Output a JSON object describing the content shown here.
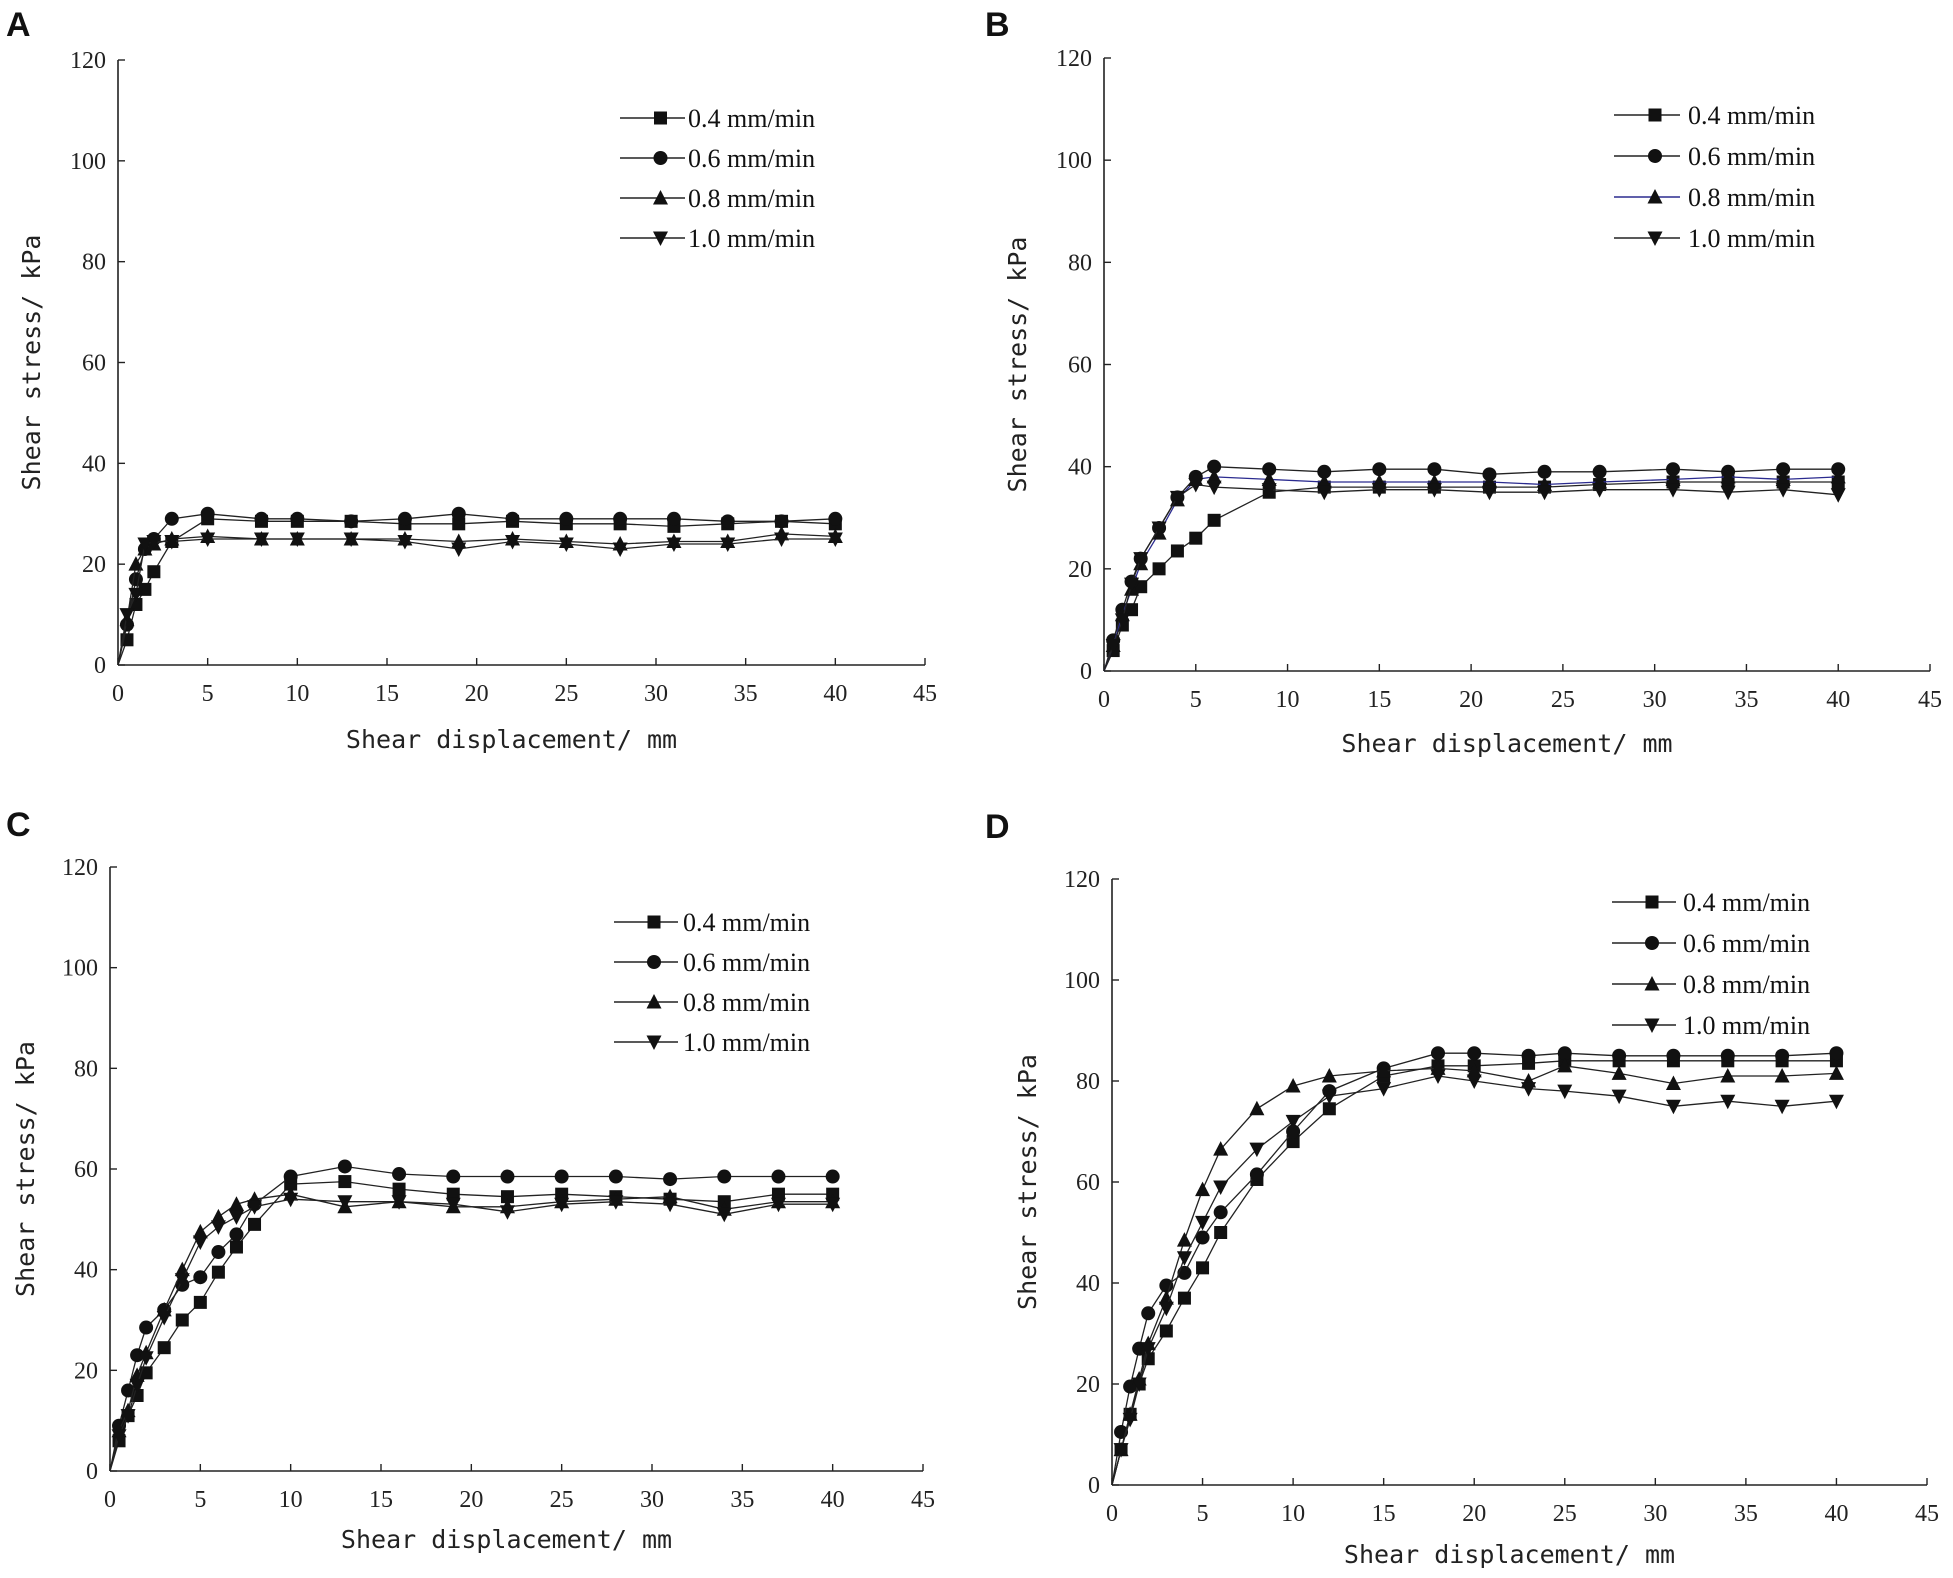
{
  "chart_data": [
    {
      "panel": "A",
      "type": "line",
      "xlabel": "Shear displacement/ mm",
      "ylabel": "Shear stress/ kPa",
      "xlim": [
        0,
        45
      ],
      "ylim": [
        0,
        120
      ],
      "xticks": [
        0,
        5,
        10,
        15,
        20,
        25,
        30,
        35,
        40,
        45
      ],
      "yticks": [
        0,
        20,
        40,
        60,
        80,
        100,
        120
      ],
      "legend_position": "top-right",
      "series": [
        {
          "name": "0.4 mm/min",
          "marker": "square",
          "color": "#222222",
          "x": [
            0,
            0.5,
            1,
            1.5,
            2,
            3,
            5,
            8,
            10,
            13,
            16,
            19,
            22,
            25,
            28,
            31,
            34,
            37,
            40
          ],
          "y": [
            0,
            5,
            12,
            15,
            18.5,
            24.5,
            29,
            28.5,
            28.5,
            28.5,
            28,
            28,
            28.5,
            28,
            28,
            27.5,
            28,
            28.5,
            28
          ]
        },
        {
          "name": "0.6 mm/min",
          "marker": "circle",
          "color": "#222222",
          "x": [
            0,
            0.5,
            1,
            1.5,
            2,
            3,
            5,
            8,
            10,
            13,
            16,
            19,
            22,
            25,
            28,
            31,
            34,
            37,
            40
          ],
          "y": [
            0,
            8,
            17,
            23,
            25,
            29,
            30,
            29,
            29,
            28.5,
            29,
            30,
            29,
            29,
            29,
            29,
            28.5,
            28.5,
            29
          ]
        },
        {
          "name": "0.8 mm/min",
          "marker": "triangle-up",
          "color": "#222222",
          "x": [
            0,
            0.5,
            1,
            1.5,
            2,
            3,
            5,
            8,
            10,
            13,
            16,
            19,
            22,
            25,
            28,
            31,
            34,
            37,
            40
          ],
          "y": [
            0,
            9,
            20,
            23,
            24,
            25,
            25.5,
            25,
            25,
            25,
            25,
            24.5,
            25,
            24.5,
            24,
            24.5,
            24.5,
            26,
            25.5
          ]
        },
        {
          "name": "1.0 mm/min",
          "marker": "triangle-down",
          "color": "#222222",
          "x": [
            0,
            0.5,
            1,
            1.5,
            2,
            3,
            5,
            8,
            10,
            13,
            16,
            19,
            22,
            25,
            28,
            31,
            34,
            37,
            40
          ],
          "y": [
            0,
            10,
            14,
            24,
            24.5,
            24.5,
            25,
            25,
            25,
            25,
            24.5,
            23,
            24.5,
            24,
            23,
            24,
            24,
            25,
            25
          ]
        }
      ]
    },
    {
      "panel": "B",
      "type": "line",
      "xlabel": "Shear displacement/ mm",
      "ylabel": "Shear stress/ kPa",
      "xlim": [
        0,
        45
      ],
      "ylim": [
        0,
        120
      ],
      "xticks": [
        0,
        5,
        10,
        15,
        20,
        25,
        30,
        35,
        40,
        45
      ],
      "yticks": [
        0,
        20,
        40,
        60,
        80,
        100,
        120
      ],
      "legend_position": "top-right",
      "series": [
        {
          "name": "0.4 mm/min",
          "marker": "square",
          "color": "#222222",
          "x": [
            0,
            0.5,
            1,
            1.5,
            2,
            3,
            4,
            5,
            6,
            9,
            12,
            15,
            18,
            21,
            24,
            27,
            31,
            34,
            37,
            40
          ],
          "y": [
            0,
            4,
            9,
            12,
            16.5,
            20,
            23.5,
            26,
            29.5,
            35,
            36,
            36,
            36,
            36,
            36,
            36.5,
            37,
            37,
            37,
            37
          ]
        },
        {
          "name": "0.6 mm/min",
          "marker": "circle",
          "color": "#222222",
          "x": [
            0,
            0.5,
            1,
            1.5,
            2,
            3,
            4,
            5,
            6,
            9,
            12,
            15,
            18,
            21,
            24,
            27,
            31,
            34,
            37,
            40
          ],
          "y": [
            0,
            6,
            12,
            17.5,
            22,
            28,
            34,
            38,
            40,
            39.5,
            39,
            39.5,
            39.5,
            38.5,
            39,
            39,
            39.5,
            39,
            39.5,
            39.5
          ]
        },
        {
          "name": "0.8 mm/min",
          "marker": "triangle-up",
          "color": "#2b2b8f",
          "x": [
            0,
            0.5,
            1,
            1.5,
            2,
            3,
            4,
            5,
            6,
            9,
            12,
            15,
            18,
            21,
            24,
            27,
            31,
            34,
            37,
            40
          ],
          "y": [
            0,
            5,
            11,
            16,
            21,
            27,
            33.5,
            37.5,
            38,
            37.5,
            37,
            37,
            37,
            37,
            36.5,
            37,
            37.5,
            38,
            37.5,
            38
          ]
        },
        {
          "name": "1.0 mm/min",
          "marker": "triangle-down",
          "color": "#222222",
          "x": [
            0,
            0.5,
            1,
            1.5,
            2,
            3,
            4,
            5,
            6,
            9,
            12,
            15,
            18,
            21,
            24,
            27,
            31,
            34,
            37,
            40
          ],
          "y": [
            0,
            5,
            10,
            17,
            22,
            28,
            34,
            36.5,
            36,
            35.5,
            35,
            35.5,
            35.5,
            35,
            35,
            35.5,
            35.5,
            35,
            35.5,
            34.5
          ]
        }
      ]
    },
    {
      "panel": "C",
      "type": "line",
      "xlabel": "Shear displacement/ mm",
      "ylabel": "Shear stress/ kPa",
      "xlim": [
        0,
        45
      ],
      "ylim": [
        0,
        120
      ],
      "xticks": [
        0,
        5,
        10,
        15,
        20,
        25,
        30,
        35,
        40,
        45
      ],
      "yticks": [
        0,
        20,
        40,
        60,
        80,
        100,
        120
      ],
      "legend_position": "top-right",
      "series": [
        {
          "name": "0.4 mm/min",
          "marker": "square",
          "color": "#222222",
          "x": [
            0,
            0.5,
            1,
            1.5,
            2,
            3,
            4,
            5,
            6,
            7,
            8,
            10,
            13,
            16,
            19,
            22,
            25,
            28,
            31,
            34,
            37,
            40
          ],
          "y": [
            0,
            6,
            11,
            15,
            19.5,
            24.5,
            30,
            33.5,
            39.5,
            44.5,
            49,
            57,
            57.5,
            56,
            55,
            54.5,
            55,
            54.5,
            54,
            53.5,
            55,
            55
          ]
        },
        {
          "name": "0.6 mm/min",
          "marker": "circle",
          "color": "#222222",
          "x": [
            0,
            0.5,
            1,
            1.5,
            2,
            3,
            4,
            5,
            6,
            7,
            8,
            10,
            13,
            16,
            19,
            22,
            25,
            28,
            31,
            34,
            37,
            40
          ],
          "y": [
            0,
            9,
            16,
            23,
            28.5,
            32,
            37,
            38.5,
            43.5,
            47,
            53,
            58.5,
            60.5,
            59,
            58.5,
            58.5,
            58.5,
            58.5,
            58,
            58.5,
            58.5,
            58.5
          ]
        },
        {
          "name": "0.8 mm/min",
          "marker": "triangle-up",
          "color": "#222222",
          "x": [
            0,
            0.5,
            1,
            1.5,
            2,
            3,
            4,
            5,
            6,
            7,
            8,
            10,
            13,
            16,
            19,
            22,
            25,
            28,
            31,
            34,
            37,
            40
          ],
          "y": [
            0,
            8,
            12,
            19,
            23.5,
            32,
            40,
            47.5,
            50.5,
            53,
            54,
            55,
            52.5,
            53.5,
            52.5,
            52.5,
            53.5,
            54,
            54.5,
            52,
            53.5,
            53.5
          ]
        },
        {
          "name": "1.0 mm/min",
          "marker": "triangle-down",
          "color": "#222222",
          "x": [
            0,
            0.5,
            1,
            1.5,
            2,
            3,
            4,
            5,
            6,
            7,
            8,
            10,
            13,
            16,
            19,
            22,
            25,
            28,
            31,
            34,
            37,
            40
          ],
          "y": [
            0,
            7,
            11,
            17,
            22.5,
            30.5,
            38,
            45.5,
            48.5,
            50.5,
            52.5,
            54,
            53.5,
            53.5,
            53,
            51.5,
            53,
            53.5,
            53,
            51,
            53,
            53
          ]
        }
      ]
    },
    {
      "panel": "D",
      "type": "line",
      "xlabel": "Shear displacement/ mm",
      "ylabel": "Shear stress/ kPa",
      "xlim": [
        0,
        45
      ],
      "ylim": [
        0,
        120
      ],
      "xticks": [
        0,
        5,
        10,
        15,
        20,
        25,
        30,
        35,
        40,
        45
      ],
      "yticks": [
        0,
        20,
        40,
        60,
        80,
        100,
        120
      ],
      "legend_position": "top-right",
      "series": [
        {
          "name": "0.4 mm/min",
          "marker": "square",
          "color": "#222222",
          "x": [
            0,
            0.5,
            1,
            1.5,
            2,
            3,
            4,
            5,
            6,
            8,
            10,
            12,
            15,
            18,
            20,
            23,
            25,
            28,
            31,
            34,
            37,
            40
          ],
          "y": [
            0,
            7,
            14,
            20,
            25,
            30.5,
            37,
            43,
            50,
            60.5,
            68,
            74.5,
            81,
            83,
            83,
            83.5,
            84,
            84,
            84,
            84,
            84,
            84
          ]
        },
        {
          "name": "0.6 mm/min",
          "marker": "circle",
          "color": "#222222",
          "x": [
            0,
            0.5,
            1,
            1.5,
            2,
            3,
            4,
            5,
            6,
            8,
            10,
            12,
            15,
            18,
            20,
            23,
            25,
            28,
            31,
            34,
            37,
            40
          ],
          "y": [
            0,
            10.5,
            19.5,
            27,
            34,
            39.5,
            42,
            49,
            54,
            61.5,
            70,
            78,
            82.5,
            85.5,
            85.5,
            85,
            85.5,
            85,
            85,
            85,
            85,
            85.5
          ]
        },
        {
          "name": "0.8 mm/min",
          "marker": "triangle-up",
          "color": "#222222",
          "x": [
            0,
            0.5,
            1,
            1.5,
            2,
            3,
            4,
            5,
            6,
            8,
            10,
            12,
            15,
            18,
            20,
            23,
            25,
            28,
            31,
            34,
            37,
            40
          ],
          "y": [
            0,
            7,
            14,
            21,
            28,
            37,
            48.5,
            58.5,
            66.5,
            74.5,
            79,
            81,
            82,
            82.5,
            82,
            80,
            83,
            81.5,
            79.5,
            81,
            81,
            81.5
          ]
        },
        {
          "name": "1.0 mm/min",
          "marker": "triangle-down",
          "color": "#222222",
          "x": [
            0,
            0.5,
            1,
            1.5,
            2,
            3,
            4,
            5,
            6,
            8,
            10,
            12,
            15,
            18,
            20,
            23,
            25,
            28,
            31,
            34,
            37,
            40
          ],
          "y": [
            0,
            7,
            13,
            20,
            27,
            35,
            45,
            52,
            59,
            66.5,
            72,
            77,
            78.5,
            81,
            80,
            78.5,
            78,
            77,
            75,
            76,
            75,
            76
          ]
        }
      ]
    }
  ]
}
